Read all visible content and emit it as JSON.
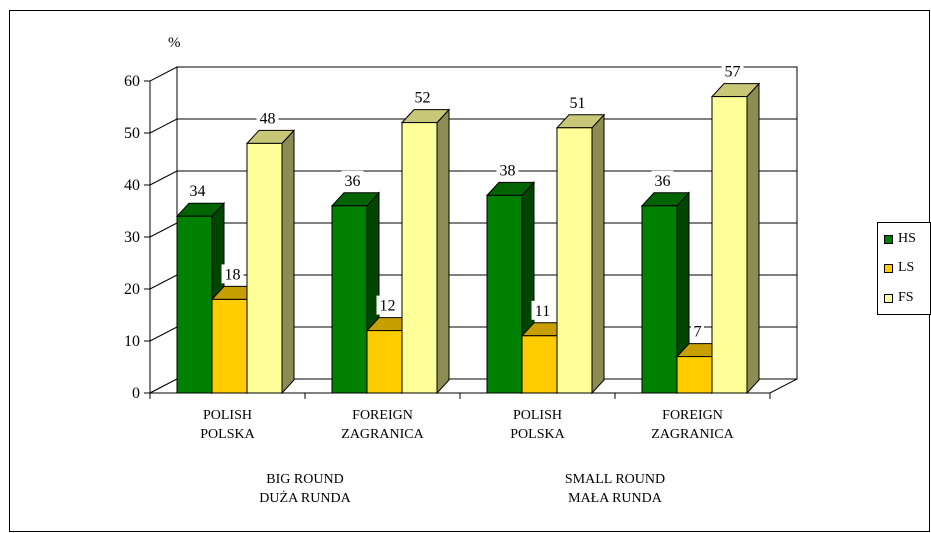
{
  "chart_data": {
    "type": "bar",
    "ylabel": "%",
    "ylim": [
      0,
      60
    ],
    "yticks": [
      "0",
      "10",
      "20",
      "30",
      "40",
      "50",
      "60"
    ],
    "grid": true,
    "legend_position": "right",
    "categories": [
      {
        "line1": "POLISH",
        "line2": "POLSKA"
      },
      {
        "line1": "FOREIGN",
        "line2": "ZAGRANICA"
      },
      {
        "line1": "POLISH",
        "line2": "POLSKA"
      },
      {
        "line1": "FOREIGN",
        "line2": "ZAGRANICA"
      }
    ],
    "groups": [
      {
        "line1": "BIG ROUND",
        "line2": "DUŻA RUNDA"
      },
      {
        "line1": "SMALL ROUND",
        "line2": "MAŁA RUNDA"
      }
    ],
    "series": [
      {
        "name": "HS",
        "color": "#008000",
        "values": [
          34,
          36,
          38,
          36
        ]
      },
      {
        "name": "LS",
        "color": "#ffcc00",
        "values": [
          18,
          12,
          11,
          7
        ]
      },
      {
        "name": "FS",
        "color": "#ffff99",
        "values": [
          48,
          52,
          51,
          57
        ]
      }
    ],
    "data_labels": [
      [
        "34",
        "36",
        "38",
        "36"
      ],
      [
        "18",
        "12",
        "11",
        "7"
      ],
      [
        "48",
        "52",
        "51",
        "57"
      ]
    ]
  }
}
